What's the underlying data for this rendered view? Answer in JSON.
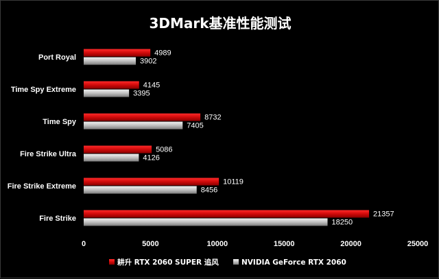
{
  "chart_data": {
    "type": "bar",
    "orientation": "horizontal",
    "title": "3DMark基准性能测试",
    "categories": [
      "Port Royal",
      "Time Spy Extreme",
      "Time Spy",
      "Fire Strike Ultra",
      "Fire Strike Extreme",
      "Fire Strike"
    ],
    "series": [
      {
        "name": "耕升 RTX 2060 SUPER 追风",
        "color": "#d00a0a",
        "values": [
          4989,
          4145,
          8732,
          5086,
          10119,
          21357
        ]
      },
      {
        "name": "NVIDIA GeForce RTX 2060",
        "color": "#c0c0c0",
        "values": [
          3902,
          3395,
          7405,
          4126,
          8456,
          18250
        ]
      }
    ],
    "xlim": [
      0,
      25000
    ],
    "xticks": [
      0,
      5000,
      10000,
      15000,
      20000,
      25000
    ],
    "xlabel": "",
    "ylabel": "",
    "grid": false,
    "legend_position": "bottom",
    "background_color": "#000000"
  }
}
